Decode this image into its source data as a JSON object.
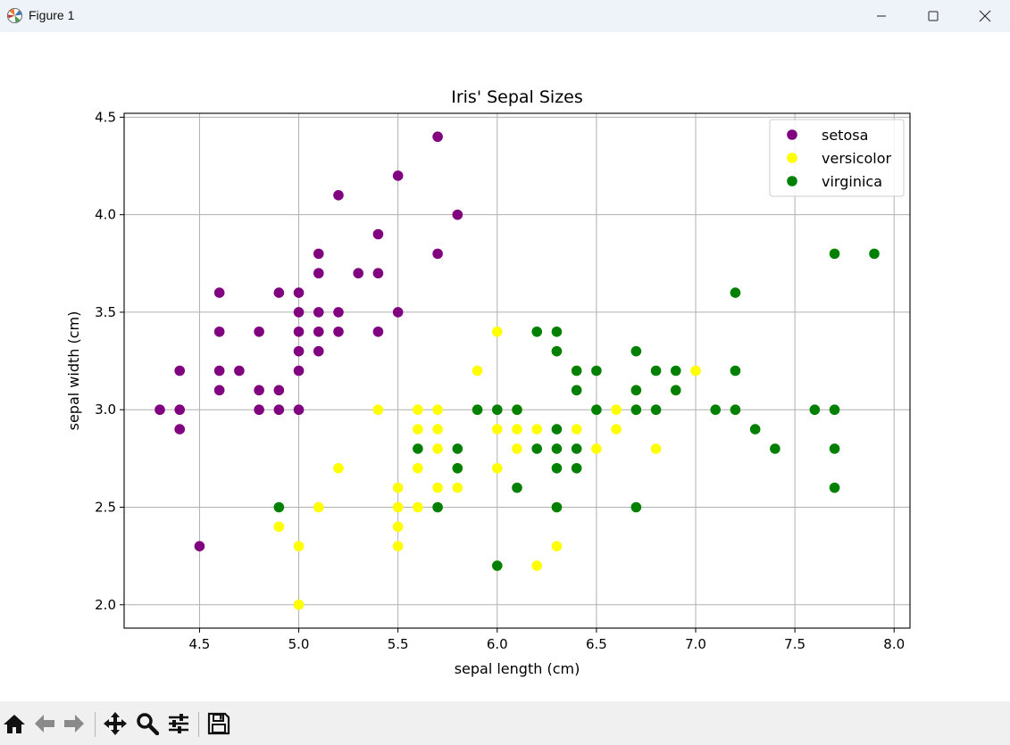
{
  "window": {
    "title": "Figure 1",
    "app_icon": "matplotlib-icon",
    "controls": [
      "minimize-icon",
      "maximize-icon",
      "close-icon"
    ]
  },
  "toolbar": {
    "buttons": [
      {
        "name": "home-icon",
        "label": "Home"
      },
      {
        "name": "back-icon",
        "label": "Back"
      },
      {
        "name": "forward-icon",
        "label": "Forward"
      },
      {
        "name": "pan-icon",
        "label": "Pan"
      },
      {
        "name": "zoom-icon",
        "label": "Zoom"
      },
      {
        "name": "configure-subplots-icon",
        "label": "Subplots"
      },
      {
        "name": "save-icon",
        "label": "Save"
      }
    ]
  },
  "chart_data": {
    "type": "scatter",
    "title": "Iris' Sepal Sizes",
    "xlabel": "sepal length (cm)",
    "ylabel": "sepal width (cm)",
    "xlim": [
      4.12,
      8.08
    ],
    "ylim": [
      1.88,
      4.52
    ],
    "xticks": [
      4.5,
      5.0,
      5.5,
      6.0,
      6.5,
      7.0,
      7.5,
      8.0
    ],
    "yticks": [
      2.0,
      2.5,
      3.0,
      3.5,
      4.0,
      4.5
    ],
    "grid": true,
    "legend_position": "top-right",
    "series": [
      {
        "name": "setosa",
        "color": "#800080",
        "points": [
          [
            4.3,
            3.0
          ],
          [
            4.4,
            3.0
          ],
          [
            4.4,
            2.9
          ],
          [
            4.4,
            3.2
          ],
          [
            4.5,
            2.3
          ],
          [
            4.6,
            3.1
          ],
          [
            4.6,
            3.2
          ],
          [
            4.6,
            3.4
          ],
          [
            4.6,
            3.6
          ],
          [
            4.7,
            3.2
          ],
          [
            4.8,
            3.0
          ],
          [
            4.8,
            3.1
          ],
          [
            4.8,
            3.4
          ],
          [
            4.9,
            3.0
          ],
          [
            4.9,
            3.1
          ],
          [
            4.9,
            3.6
          ],
          [
            5.0,
            3.0
          ],
          [
            5.0,
            3.2
          ],
          [
            5.0,
            3.3
          ],
          [
            5.0,
            3.4
          ],
          [
            5.0,
            3.5
          ],
          [
            5.0,
            3.6
          ],
          [
            5.1,
            3.3
          ],
          [
            5.1,
            3.4
          ],
          [
            5.1,
            3.5
          ],
          [
            5.1,
            3.7
          ],
          [
            5.1,
            3.8
          ],
          [
            5.2,
            3.4
          ],
          [
            5.2,
            3.5
          ],
          [
            5.2,
            4.1
          ],
          [
            5.3,
            3.7
          ],
          [
            5.4,
            3.4
          ],
          [
            5.4,
            3.7
          ],
          [
            5.4,
            3.9
          ],
          [
            5.5,
            3.5
          ],
          [
            5.5,
            4.2
          ],
          [
            5.7,
            3.8
          ],
          [
            5.7,
            4.4
          ],
          [
            5.8,
            4.0
          ]
        ]
      },
      {
        "name": "versicolor",
        "color": "#ffff00",
        "points": [
          [
            4.9,
            2.4
          ],
          [
            5.0,
            2.0
          ],
          [
            5.0,
            2.3
          ],
          [
            5.1,
            2.5
          ],
          [
            5.2,
            2.7
          ],
          [
            5.4,
            3.0
          ],
          [
            5.5,
            2.3
          ],
          [
            5.5,
            2.4
          ],
          [
            5.5,
            2.5
          ],
          [
            5.5,
            2.6
          ],
          [
            5.6,
            2.5
          ],
          [
            5.6,
            2.7
          ],
          [
            5.6,
            2.9
          ],
          [
            5.6,
            3.0
          ],
          [
            5.7,
            2.6
          ],
          [
            5.7,
            2.8
          ],
          [
            5.7,
            2.9
          ],
          [
            5.7,
            3.0
          ],
          [
            5.8,
            2.6
          ],
          [
            5.8,
            2.7
          ],
          [
            5.9,
            3.2
          ],
          [
            5.9,
            3.0
          ],
          [
            6.0,
            2.2
          ],
          [
            6.0,
            2.7
          ],
          [
            6.0,
            2.9
          ],
          [
            6.0,
            3.4
          ],
          [
            6.1,
            2.8
          ],
          [
            6.1,
            2.9
          ],
          [
            6.1,
            3.0
          ],
          [
            6.2,
            2.2
          ],
          [
            6.2,
            2.9
          ],
          [
            6.3,
            2.3
          ],
          [
            6.3,
            2.5
          ],
          [
            6.3,
            3.3
          ],
          [
            6.4,
            2.9
          ],
          [
            6.4,
            3.2
          ],
          [
            6.5,
            2.8
          ],
          [
            6.6,
            2.9
          ],
          [
            6.6,
            3.0
          ],
          [
            6.7,
            3.0
          ],
          [
            6.7,
            3.1
          ],
          [
            6.8,
            2.8
          ],
          [
            6.9,
            3.1
          ],
          [
            7.0,
            3.2
          ]
        ]
      },
      {
        "name": "virginica",
        "color": "#008000",
        "points": [
          [
            4.9,
            2.5
          ],
          [
            5.6,
            2.8
          ],
          [
            5.7,
            2.5
          ],
          [
            5.8,
            2.7
          ],
          [
            5.8,
            2.8
          ],
          [
            5.9,
            3.0
          ],
          [
            6.0,
            2.2
          ],
          [
            6.0,
            3.0
          ],
          [
            6.1,
            2.6
          ],
          [
            6.1,
            3.0
          ],
          [
            6.2,
            2.8
          ],
          [
            6.2,
            3.4
          ],
          [
            6.3,
            2.5
          ],
          [
            6.3,
            2.7
          ],
          [
            6.3,
            2.8
          ],
          [
            6.3,
            2.9
          ],
          [
            6.3,
            3.3
          ],
          [
            6.3,
            3.4
          ],
          [
            6.4,
            2.7
          ],
          [
            6.4,
            2.8
          ],
          [
            6.4,
            3.1
          ],
          [
            6.4,
            3.2
          ],
          [
            6.5,
            3.0
          ],
          [
            6.5,
            3.2
          ],
          [
            6.7,
            2.5
          ],
          [
            6.7,
            3.0
          ],
          [
            6.7,
            3.1
          ],
          [
            6.7,
            3.3
          ],
          [
            6.8,
            3.0
          ],
          [
            6.8,
            3.2
          ],
          [
            6.9,
            3.1
          ],
          [
            6.9,
            3.2
          ],
          [
            7.1,
            3.0
          ],
          [
            7.2,
            3.0
          ],
          [
            7.2,
            3.2
          ],
          [
            7.2,
            3.6
          ],
          [
            7.3,
            2.9
          ],
          [
            7.4,
            2.8
          ],
          [
            7.6,
            3.0
          ],
          [
            7.7,
            2.6
          ],
          [
            7.7,
            2.8
          ],
          [
            7.7,
            3.0
          ],
          [
            7.7,
            3.8
          ],
          [
            7.9,
            3.8
          ]
        ]
      }
    ]
  }
}
